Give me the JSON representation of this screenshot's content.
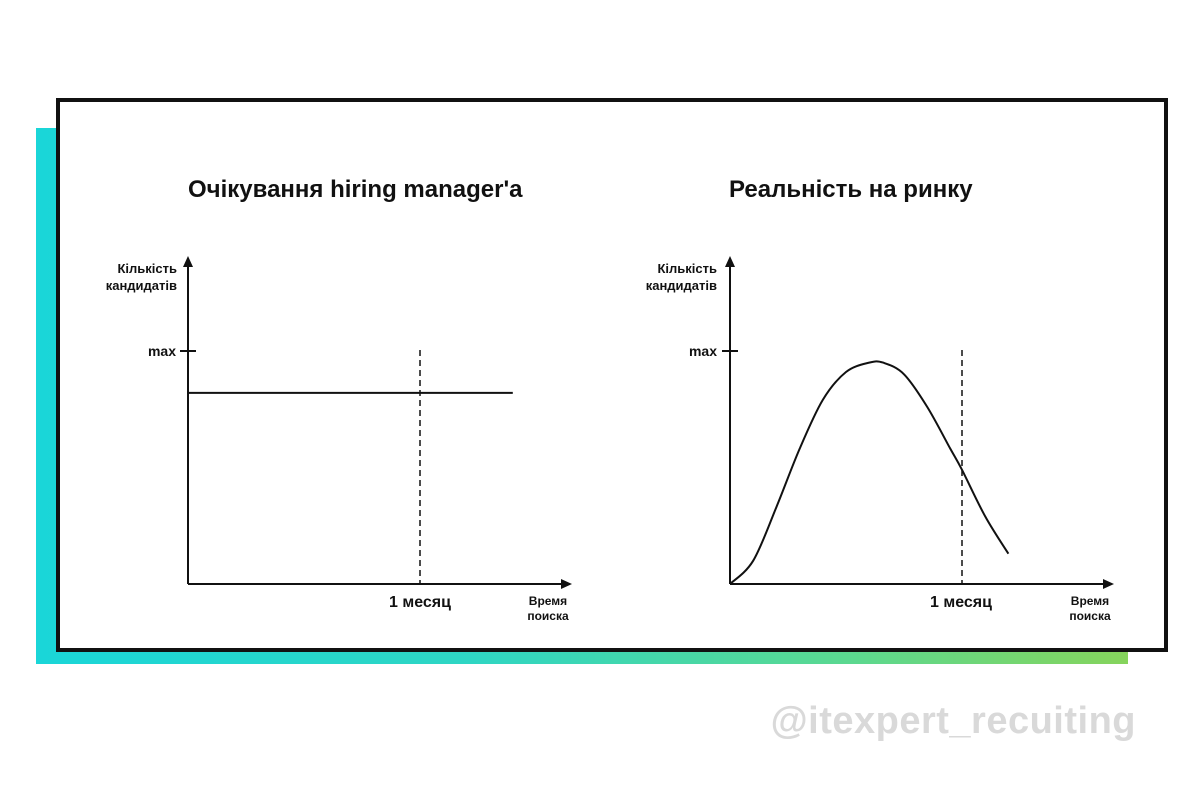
{
  "chart_data": [
    {
      "type": "line",
      "title": "Очікування hiring manager'a",
      "ylabel_lines": [
        "Кількість",
        "кандидатів"
      ],
      "xlabel_lines": [
        "Время",
        "поиска"
      ],
      "y_tick_label": "max",
      "x_marker_label": "1 месяц",
      "series": [
        {
          "x": [
            0,
            0.25,
            0.5,
            0.75,
            1.0,
            1.25,
            1.4
          ],
          "y": [
            0.82,
            0.82,
            0.82,
            0.82,
            0.82,
            0.82,
            0.82
          ]
        }
      ]
    },
    {
      "type": "line",
      "title": "Реальність на ринку",
      "ylabel_lines": [
        "Кількість",
        "кандидатів"
      ],
      "xlabel_lines": [
        "Время",
        "поиска"
      ],
      "y_tick_label": "max",
      "x_marker_label": "1 месяц",
      "series": [
        {
          "x": [
            0,
            0.1,
            0.2,
            0.3,
            0.4,
            0.5,
            0.6,
            0.66,
            0.75,
            0.85,
            0.95,
            1.0,
            1.1,
            1.2
          ],
          "y": [
            0,
            0.1,
            0.33,
            0.58,
            0.79,
            0.91,
            0.95,
            0.95,
            0.9,
            0.76,
            0.58,
            0.49,
            0.29,
            0.13
          ]
        }
      ]
    }
  ],
  "watermark": "@itexpert_recuiting",
  "colors": {
    "frame": "#111111",
    "accent_start": "#1ad6d8",
    "accent_end": "#86d45c",
    "watermark": "#d9d9d9"
  }
}
